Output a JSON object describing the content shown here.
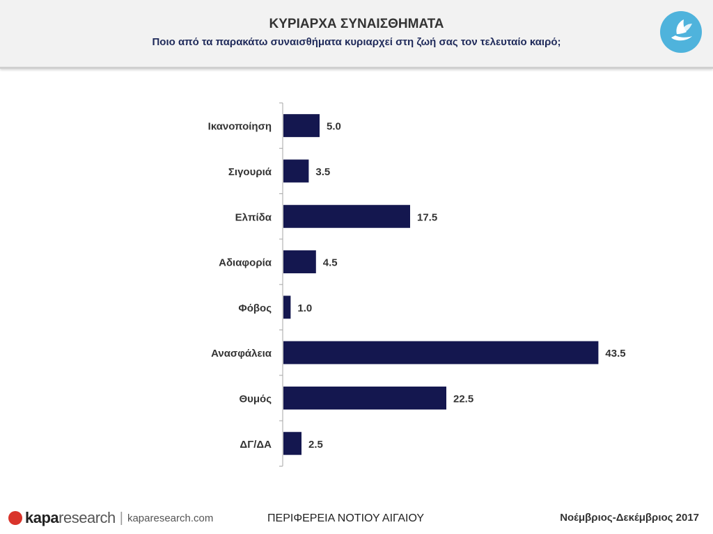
{
  "header": {
    "title": "ΚΥΡΙΑΡΧΑ ΣΥΝΑΙΣΘΗΜΑΤΑ",
    "subtitle": "Ποιο από τα παρακάτω συναισθήματα κυριαρχεί στη ζωή σας τον τελευταίο καιρό;",
    "logo_icon": "dove-hand-icon"
  },
  "chart_data": {
    "type": "bar",
    "orientation": "horizontal",
    "categories": [
      "Ικανοποίηση",
      "Σιγουριά",
      "Ελπίδα",
      "Αδιαφορία",
      "Φόβος",
      "Ανασφάλεια",
      "Θυμός",
      "ΔΓ/ΔΑ"
    ],
    "values": [
      5.0,
      3.5,
      17.5,
      4.5,
      1.0,
      43.5,
      22.5,
      2.5
    ],
    "value_labels": [
      "5.0",
      "3.5",
      "17.5",
      "4.5",
      "1.0",
      "43.5",
      "22.5",
      "2.5"
    ],
    "xlim": [
      0,
      45
    ],
    "bar_color": "#14174f",
    "grid": false
  },
  "footer": {
    "brand_bold": "kapa",
    "brand_light": "research",
    "separator": "|",
    "url": "kaparesearch.com",
    "region": "ΠΕΡΙΦΕΡΕΙΑ ΝΟΤΙΟΥ ΑΙΓΑΙΟΥ",
    "period": "Νοέμβριος-Δεκέμβριος 2017"
  }
}
